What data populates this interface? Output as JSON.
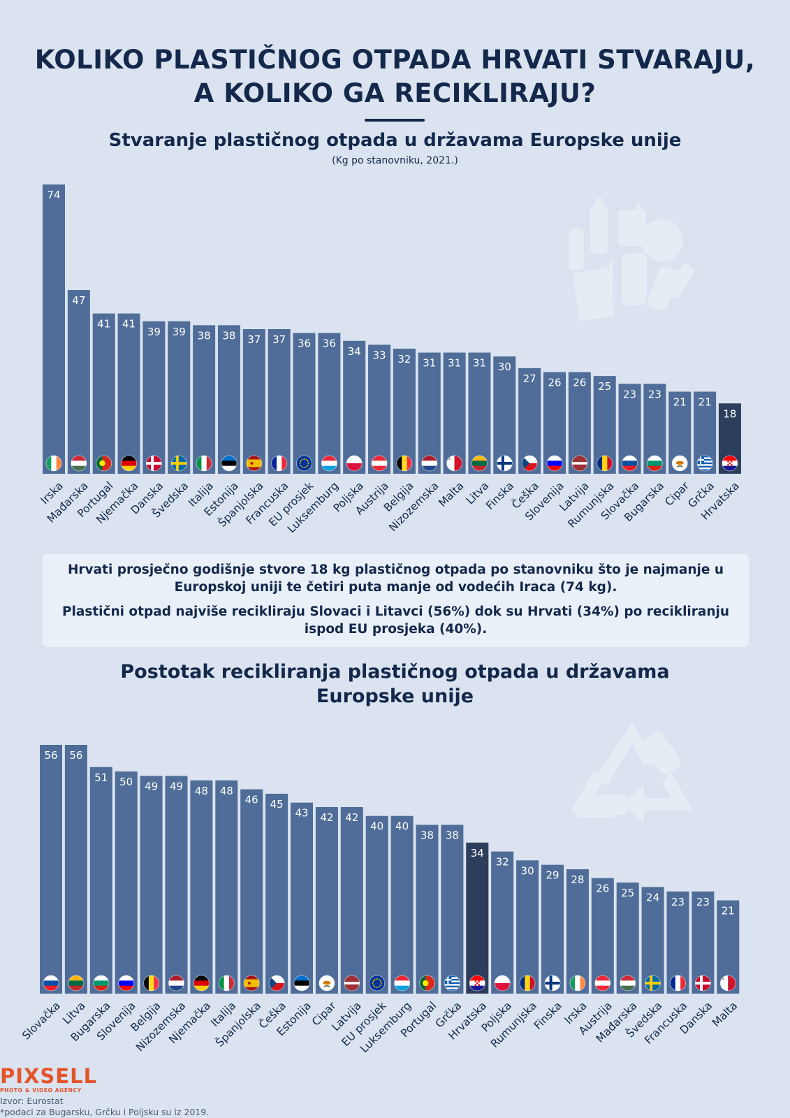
{
  "title_line1": "KOLIKO PLASTIČNOG OTPADA HRVATI STVARAJU,",
  "title_line2": "A KOLIKO GA RECIKLIRAJU?",
  "note_paragraph1": "Hrvati prosječno godišnje stvore 18 kg plastičnog otpada po stanovniku što je najmanje u Europskoj uniji te četiri puta manje od vodećih Iraca (74 kg).",
  "note_paragraph2": "Plastični otpad najviše recikliraju Slovaci i Litavci (56%) dok su Hrvati (34%) po recikliranju ispod EU prosjeka (40%).",
  "logo": {
    "name": "PIXSELL",
    "tagline": "PHOTO & VIDEO AGENCY"
  },
  "source": "Izvor: Eurostat",
  "footnote": "*podaci za Bugarsku, Grčku i Poljsku su iz 2019.",
  "colors": {
    "background": "#dae3ef",
    "bar": "#4f6d98",
    "highlight_bar": "#2c3e5b",
    "text": "#13284b",
    "logo": "#e4542b"
  },
  "icons": [
    "plastic-waste-illustration",
    "recycle-symbol-illustration",
    "country-flag-icons"
  ],
  "chart_data": [
    {
      "type": "bar",
      "title": "Stvaranje plastičnog otpada u državama Europske unije",
      "subtitle": "(Kg po stanovniku, 2021.)",
      "categories": [
        "Irska",
        "Mađarska",
        "Portugal",
        "Njemačka",
        "Danska",
        "Švedska",
        "Italija",
        "Estonija",
        "Španjolska",
        "Francuska",
        "EU prosjek",
        "Luksemburg",
        "Poljska",
        "Austrija",
        "Belgija",
        "Nizozemska",
        "Malta",
        "Litva",
        "Finska",
        "Češka",
        "Slovenija",
        "Latvija",
        "Rumunjska",
        "Slovačka",
        "Bugarska",
        "Cipar",
        "Grčka",
        "Hrvatska"
      ],
      "values": [
        74,
        47,
        41,
        41,
        39,
        39,
        38,
        38,
        37,
        37,
        36,
        36,
        34,
        33,
        32,
        31,
        31,
        31,
        30,
        27,
        26,
        26,
        25,
        23,
        23,
        21,
        21,
        18
      ],
      "highlight": "Hrvatska",
      "ylim": [
        0,
        74
      ],
      "grid": false
    },
    {
      "type": "bar",
      "title": "Postotak recikliranja plastičnog otpada u državama Europske unije",
      "categories": [
        "Slovačka",
        "Litva",
        "Bugarska",
        "Slovenija",
        "Belgija",
        "Nizozemska",
        "Njemačka",
        "Italija",
        "Španjolska",
        "Češka",
        "Estonija",
        "Cipar",
        "Latvija",
        "EU prosjek",
        "Luksemburg",
        "Portugal",
        "Grčka",
        "Hrvatska",
        "Poljska",
        "Rumunjska",
        "Finska",
        "Irska",
        "Austrija",
        "Mađarska",
        "Švedska",
        "Francuska",
        "Danska",
        "Malta"
      ],
      "values": [
        56,
        56,
        51,
        50,
        49,
        49,
        48,
        48,
        46,
        45,
        43,
        42,
        42,
        40,
        40,
        38,
        38,
        34,
        32,
        30,
        29,
        28,
        26,
        25,
        24,
        23,
        23,
        21
      ],
      "highlight": "Hrvatska",
      "ylim": [
        0,
        56
      ],
      "grid": false
    }
  ]
}
